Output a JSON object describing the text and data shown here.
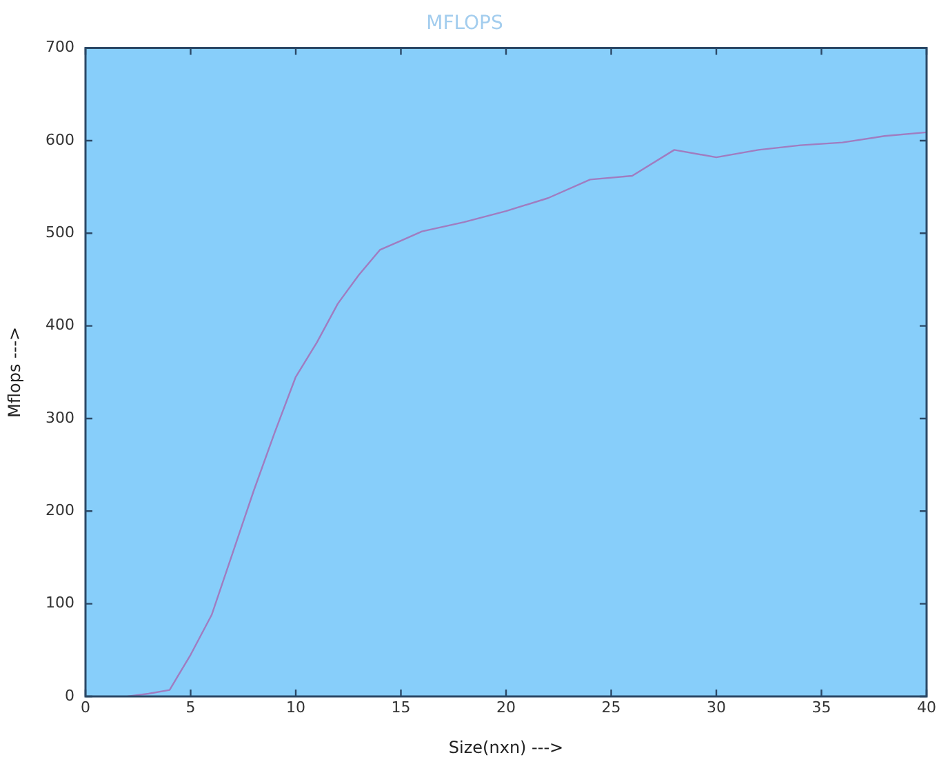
{
  "chart_data": {
    "type": "line",
    "title": "MFLOPS",
    "xlabel": "Size(nxn) --->",
    "ylabel": "Mflops --->",
    "x": [
      2,
      3,
      4,
      5,
      6,
      7,
      8,
      9,
      10,
      11,
      12,
      13,
      14,
      15,
      16,
      18,
      20,
      22,
      24,
      26,
      28,
      30,
      32,
      34,
      36,
      38,
      40
    ],
    "series": [
      {
        "color": "#a07cc0",
        "values": [
          0,
          3,
          7,
          45,
          88,
          155,
          222,
          285,
          345,
          382,
          424,
          455,
          482,
          492,
          502,
          512,
          524,
          538,
          558,
          562,
          590,
          582,
          590,
          595,
          598,
          605,
          609
        ]
      }
    ],
    "xlim": [
      0,
      40
    ],
    "xticks": [
      0,
      5,
      10,
      15,
      20,
      25,
      30,
      35,
      40
    ],
    "ylim": [
      0,
      700
    ],
    "yticks": [
      0,
      100,
      200,
      300,
      400,
      500,
      600,
      700
    ],
    "marker": "none",
    "legend": false
  }
}
